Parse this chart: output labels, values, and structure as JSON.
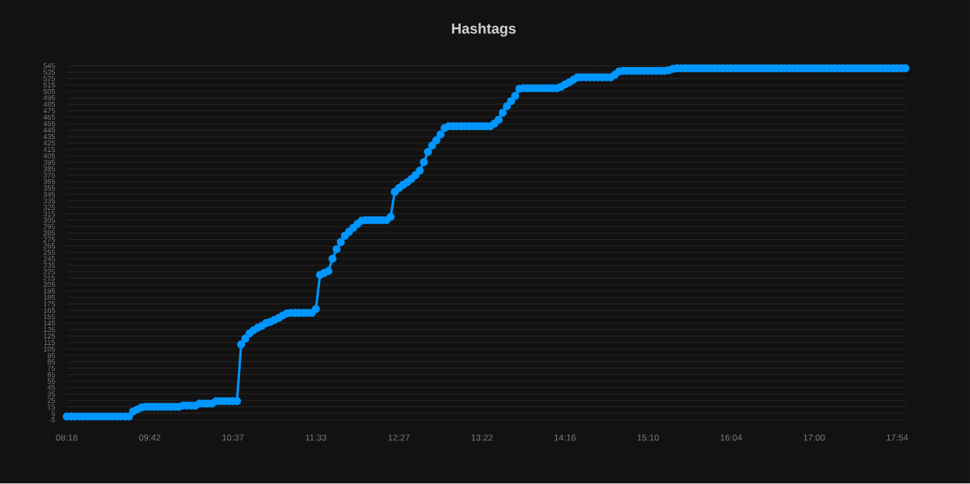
{
  "chart_data": {
    "type": "line",
    "title": "Hashtags",
    "categories": [
      "08:18",
      null,
      null,
      null,
      null,
      null,
      null,
      null,
      null,
      null,
      null,
      null,
      null,
      null,
      null,
      null,
      null,
      null,
      null,
      null,
      "09:42",
      null,
      null,
      null,
      null,
      null,
      null,
      null,
      null,
      null,
      null,
      null,
      null,
      null,
      null,
      null,
      null,
      null,
      null,
      null,
      "10:37",
      null,
      null,
      null,
      null,
      null,
      null,
      null,
      null,
      null,
      null,
      null,
      null,
      null,
      null,
      null,
      null,
      null,
      null,
      null,
      "11:33",
      null,
      null,
      null,
      null,
      null,
      null,
      null,
      null,
      null,
      null,
      null,
      null,
      null,
      null,
      null,
      null,
      null,
      null,
      null,
      "12:27",
      null,
      null,
      null,
      null,
      null,
      null,
      null,
      null,
      null,
      null,
      null,
      null,
      null,
      null,
      null,
      null,
      null,
      null,
      null,
      "13:22",
      null,
      null,
      null,
      null,
      null,
      null,
      null,
      null,
      null,
      null,
      null,
      null,
      null,
      null,
      null,
      null,
      null,
      null,
      null,
      "14:16",
      null,
      null,
      null,
      null,
      null,
      null,
      null,
      null,
      null,
      null,
      null,
      null,
      null,
      null,
      null,
      null,
      null,
      null,
      null,
      "15:10",
      null,
      null,
      null,
      null,
      null,
      null,
      null,
      null,
      null,
      null,
      null,
      null,
      null,
      null,
      null,
      null,
      null,
      null,
      null,
      "16:04",
      null,
      null,
      null,
      null,
      null,
      null,
      null,
      null,
      null,
      null,
      null,
      null,
      null,
      null,
      null,
      null,
      null,
      null,
      null,
      "17:00",
      null,
      null,
      null,
      null,
      null,
      null,
      null,
      null,
      null,
      null,
      null,
      null,
      null,
      null,
      null,
      null,
      null,
      null,
      null,
      "17:54",
      null,
      null
    ],
    "values": [
      0,
      0,
      0,
      0,
      0,
      0,
      0,
      0,
      0,
      0,
      0,
      0,
      0,
      0,
      0,
      0,
      8,
      11,
      14,
      15,
      15,
      15,
      15,
      15,
      15,
      15,
      15,
      15,
      17,
      17,
      17,
      17,
      20,
      20,
      20,
      20,
      24,
      24,
      24,
      24,
      24,
      24,
      112,
      121,
      129,
      134,
      138,
      141,
      145,
      147,
      150,
      153,
      157,
      160,
      161,
      161,
      161,
      161,
      161,
      161,
      167,
      220,
      223,
      226,
      245,
      260,
      271,
      281,
      287,
      293,
      299,
      304,
      305,
      305,
      305,
      305,
      305,
      305,
      310,
      349,
      355,
      360,
      364,
      369,
      375,
      382,
      395,
      411,
      421,
      429,
      438,
      448,
      451,
      451,
      451,
      451,
      451,
      451,
      451,
      451,
      451,
      451,
      451,
      455,
      461,
      472,
      482,
      490,
      498,
      509,
      510,
      510,
      510,
      510,
      510,
      510,
      510,
      510,
      510,
      512,
      516,
      519,
      523,
      527,
      527,
      527,
      527,
      527,
      527,
      527,
      527,
      527,
      531,
      536,
      537,
      537,
      537,
      537,
      537,
      537,
      537,
      537,
      537,
      537,
      537,
      538,
      540,
      541,
      541,
      541,
      541,
      541,
      541,
      541,
      541,
      541,
      541,
      541,
      541,
      541,
      541,
      541,
      541,
      541,
      541,
      541,
      541,
      541,
      541,
      541,
      541,
      541,
      541,
      541,
      541,
      541,
      541,
      541,
      541,
      541,
      541,
      541,
      541,
      541,
      541,
      541,
      541,
      541,
      541,
      541,
      541,
      541,
      541,
      541,
      541,
      541,
      541,
      541,
      541,
      541,
      541,
      541,
      541
    ],
    "color": "#0096ff",
    "ylim": [
      -5,
      545
    ],
    "yticks": [
      -5,
      5,
      15,
      25,
      35,
      45,
      55,
      65,
      75,
      85,
      95,
      105,
      115,
      125,
      135,
      145,
      155,
      165,
      175,
      185,
      195,
      205,
      215,
      225,
      235,
      245,
      255,
      265,
      275,
      285,
      295,
      305,
      315,
      325,
      335,
      345,
      355,
      365,
      375,
      385,
      395,
      405,
      415,
      425,
      435,
      445,
      455,
      465,
      475,
      485,
      495,
      505,
      515,
      525,
      535,
      545
    ],
    "grid": "y",
    "marker": "circle",
    "line_style": "solid"
  }
}
